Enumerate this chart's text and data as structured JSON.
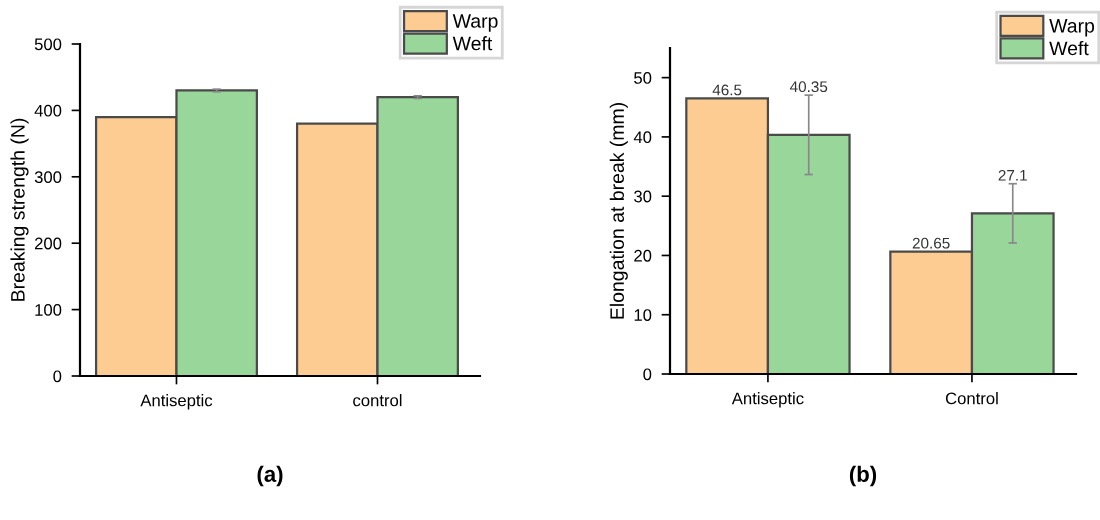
{
  "chart_data": [
    {
      "type": "bar",
      "ylabel": "Breaking strength (N)",
      "categories": [
        "Antiseptic",
        "control"
      ],
      "series": [
        {
          "name": "Warp",
          "color": "#fdcc92",
          "values": [
            390,
            380
          ]
        },
        {
          "name": "Weft",
          "color": "#98d69a",
          "values": [
            430,
            420
          ],
          "errors": [
            2,
            2
          ]
        }
      ],
      "ylim": [
        0,
        500
      ],
      "yticks": [
        0,
        100,
        200,
        300,
        400,
        500
      ],
      "legend": "top right",
      "annotations": [
        "(a)"
      ]
    },
    {
      "type": "bar",
      "ylabel": "Elongation at break (mm)",
      "categories": [
        "Antiseptic",
        "Control"
      ],
      "series": [
        {
          "name": "Warp",
          "color": "#fdcc92",
          "values": [
            46.5,
            20.65
          ]
        },
        {
          "name": "Weft",
          "color": "#98d69a",
          "values": [
            40.35,
            27.1
          ],
          "errors": [
            6.7,
            5
          ]
        }
      ],
      "ylim": [
        0,
        55
      ],
      "yticks": [
        0,
        10,
        20,
        30,
        40,
        50
      ],
      "legend": "top right",
      "data_labels": true,
      "annotations": [
        "(b)"
      ]
    }
  ]
}
